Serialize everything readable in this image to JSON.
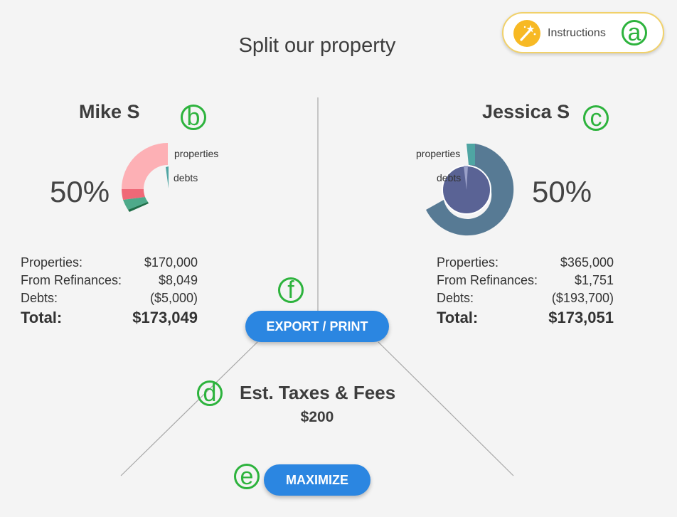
{
  "page": {
    "title": "Split our property"
  },
  "instructions": {
    "label": "Instructions"
  },
  "markers": {
    "a": "a",
    "b": "b",
    "c": "c",
    "d": "d",
    "e": "e",
    "f": "f"
  },
  "people": [
    {
      "name": "Mike S",
      "percent": "50%",
      "legend": {
        "properties": "properties",
        "debts": "debts"
      },
      "summary": {
        "properties_label": "Properties:",
        "properties_value": "$170,000",
        "refinances_label": "From Refinances:",
        "refinances_value": "$8,049",
        "debts_label": "Debts:",
        "debts_value": "($5,000)",
        "total_label": "Total:",
        "total_value": "$173,049"
      }
    },
    {
      "name": "Jessica S",
      "percent": "50%",
      "legend": {
        "properties": "properties",
        "debts": "debts"
      },
      "summary": {
        "properties_label": "Properties:",
        "properties_value": "$365,000",
        "refinances_label": "From Refinances:",
        "refinances_value": "$1,751",
        "debts_label": "Debts:",
        "debts_value": "($193,700)",
        "total_label": "Total:",
        "total_value": "$173,051"
      }
    }
  ],
  "actions": {
    "export_label": "EXPORT / PRINT",
    "maximize_label": "MAXIMIZE"
  },
  "taxes": {
    "label": "Est. Taxes & Fees",
    "value": "$200"
  },
  "colors": {
    "accent": "#2b86e1",
    "marker": "#2db33d",
    "instructions_border": "#f1d16a"
  },
  "icons": {
    "instructions": "magic-wand-icon"
  }
}
